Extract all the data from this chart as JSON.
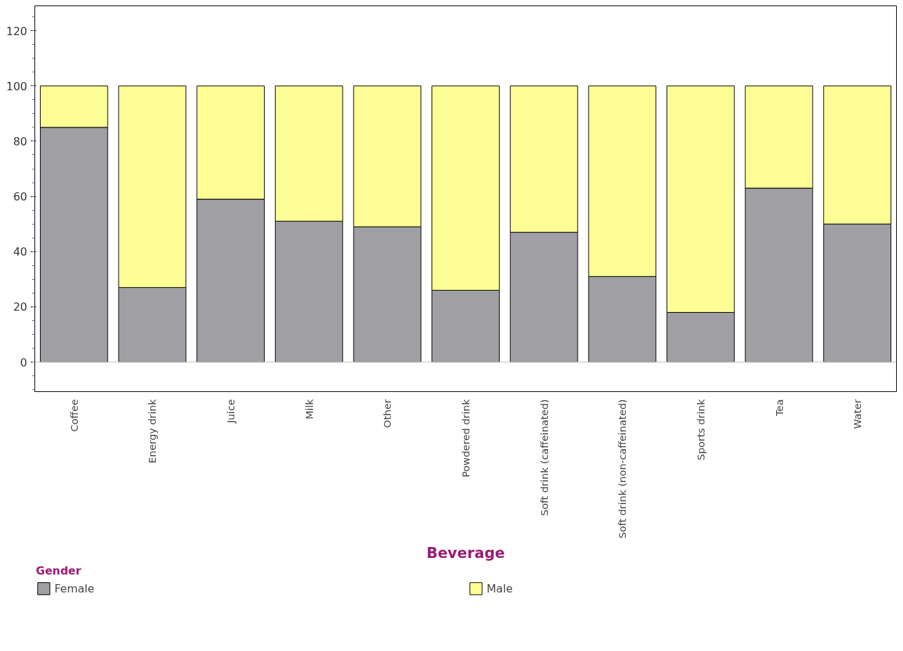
{
  "chart_data": {
    "type": "bar",
    "stacked": true,
    "xlabel": "Beverage",
    "legend_title": "Gender",
    "legend": "bottom",
    "categories": [
      "Coffee",
      "Energy drink",
      "Juice",
      "Milk",
      "Other",
      "Powdered drink",
      "Soft drink (caffeinated)",
      "Soft drink (non-caffeinated)",
      "Sports drink",
      "Tea",
      "Water"
    ],
    "series": [
      {
        "name": "Female",
        "color": "#a09fa4",
        "values": [
          85,
          27,
          59,
          51,
          49,
          26,
          47,
          31,
          18,
          63,
          50
        ]
      },
      {
        "name": "Male",
        "color": "#fdfd96",
        "values": [
          15,
          73,
          41,
          49,
          51,
          74,
          53,
          69,
          82,
          37,
          50
        ]
      }
    ],
    "ylim": [
      -10.7,
      129
    ],
    "yticks": [
      0,
      20,
      40,
      60,
      80,
      100,
      120
    ],
    "grid": false,
    "ref_lines": [
      {
        "axis": "y",
        "value": 0,
        "color": "#c0c0c0"
      }
    ]
  }
}
